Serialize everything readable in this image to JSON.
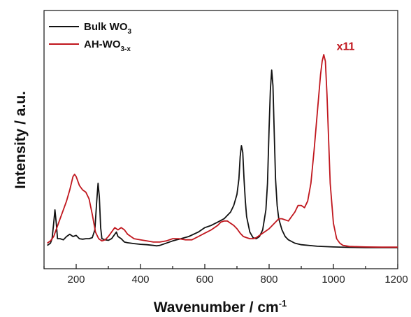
{
  "chart_data": {
    "type": "line",
    "title": "",
    "xlabel": "Wavenumber / cm",
    "xlabel_sup": "-1",
    "ylabel": "Intensity / a.u.",
    "xlim": [
      100,
      1200
    ],
    "ylim": [
      0,
      100
    ],
    "x_ticks": [
      200,
      400,
      600,
      800,
      1000,
      1200
    ],
    "y_ticks_labeled": false,
    "grid": false,
    "legend_position": "top-left",
    "legend": [
      {
        "base": "Bulk WO",
        "sub": "3",
        "color": "#111111"
      },
      {
        "base": "AH-WO",
        "sub": "3-x",
        "color": "#c0161d"
      }
    ],
    "annotations": [
      {
        "text": "x11",
        "x": 1010,
        "y": 90,
        "color": "#c0161d"
      }
    ],
    "series": [
      {
        "name": "Bulk WO3",
        "color": "#111111",
        "x": [
          110,
          120,
          125,
          130,
          134,
          138,
          142,
          150,
          160,
          170,
          180,
          190,
          200,
          210,
          220,
          230,
          240,
          250,
          258,
          264,
          268,
          272,
          276,
          280,
          290,
          300,
          310,
          320,
          325,
          330,
          340,
          350,
          360,
          380,
          400,
          420,
          440,
          450,
          460,
          500,
          550,
          580,
          600,
          620,
          640,
          660,
          680,
          690,
          700,
          706,
          710,
          714,
          718,
          722,
          726,
          730,
          740,
          750,
          760,
          770,
          780,
          790,
          795,
          800,
          804,
          808,
          812,
          816,
          820,
          825,
          830,
          840,
          850,
          860,
          880,
          900,
          950,
          1000,
          1050,
          1100,
          1150,
          1200
        ],
        "y": [
          2,
          3,
          5,
          12,
          18,
          12,
          5,
          5,
          4.5,
          6,
          7,
          6,
          6.5,
          5,
          4.8,
          5,
          5,
          5.5,
          9,
          22,
          30,
          24,
          10,
          5,
          4.5,
          4.3,
          5,
          7,
          8,
          6,
          5,
          3.5,
          3.2,
          2.8,
          2.5,
          2.3,
          2,
          1.8,
          2,
          4,
          6,
          8,
          10,
          11,
          12.5,
          14,
          17,
          20,
          25,
          32,
          42,
          47,
          44,
          32,
          22,
          15,
          8,
          5.5,
          5,
          6,
          9,
          18,
          30,
          55,
          72,
          81,
          74,
          52,
          32,
          20,
          14,
          9,
          6,
          4.5,
          3,
          2.3,
          1.6,
          1.3,
          1.1,
          1,
          1,
          1
        ]
      },
      {
        "name": "AH-WO3-x",
        "color": "#c0161d",
        "x": [
          110,
          120,
          130,
          140,
          150,
          160,
          170,
          180,
          190,
          195,
          200,
          210,
          220,
          230,
          240,
          250,
          260,
          270,
          280,
          290,
          300,
          310,
          320,
          330,
          340,
          350,
          360,
          380,
          400,
          420,
          440,
          460,
          480,
          500,
          520,
          540,
          560,
          580,
          600,
          620,
          640,
          650,
          660,
          670,
          680,
          690,
          700,
          710,
          720,
          730,
          740,
          750,
          760,
          770,
          780,
          790,
          800,
          810,
          820,
          830,
          840,
          850,
          860,
          870,
          880,
          890,
          900,
          910,
          920,
          930,
          940,
          950,
          960,
          965,
          970,
          975,
          980,
          985,
          990,
          1000,
          1010,
          1020,
          1030,
          1050,
          1100,
          1150,
          1200
        ],
        "y": [
          3,
          4,
          6,
          10,
          14,
          18,
          22,
          27,
          33,
          34,
          33,
          29,
          27,
          26,
          23,
          16,
          8,
          5,
          4,
          4.5,
          6,
          8,
          10,
          9,
          10,
          9,
          7,
          5,
          4.5,
          4,
          3.5,
          3.5,
          4,
          5,
          5,
          4.5,
          4.5,
          6,
          7.5,
          9,
          11,
          12.5,
          13,
          13,
          12,
          11,
          9.5,
          7.5,
          6,
          5.5,
          5,
          5,
          5.5,
          6.5,
          7.5,
          8.5,
          9.5,
          11,
          12.5,
          14,
          14,
          13.5,
          13,
          15,
          17,
          20,
          20,
          19,
          22,
          30,
          45,
          62,
          79,
          85,
          88,
          85,
          70,
          50,
          30,
          12,
          5,
          3,
          2,
          1.5,
          1.3,
          1.2,
          1.2
        ]
      }
    ]
  }
}
